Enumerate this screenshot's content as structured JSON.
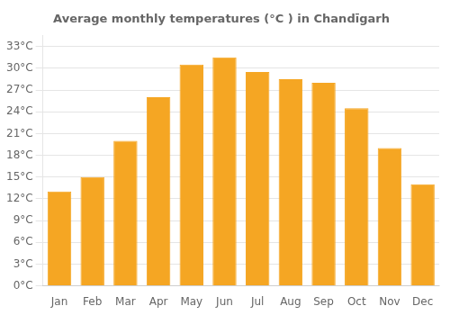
{
  "chart_data": {
    "type": "bar",
    "title": "Average monthly temperatures (°C ) in Chandīgarh",
    "categories": [
      "Jan",
      "Feb",
      "Mar",
      "Apr",
      "May",
      "Jun",
      "Jul",
      "Aug",
      "Sep",
      "Oct",
      "Nov",
      "Dec"
    ],
    "values": [
      13,
      15,
      20,
      26,
      30.5,
      31.5,
      29.5,
      28.5,
      28,
      24.5,
      19,
      14
    ],
    "color": "#F5A623",
    "ylim": [
      0,
      34.5
    ],
    "yticks": [
      {
        "value": 0,
        "label": "0°C"
      },
      {
        "value": 3,
        "label": "3°C"
      },
      {
        "value": 6,
        "label": "6°C"
      },
      {
        "value": 9,
        "label": "9°C"
      },
      {
        "value": 12,
        "label": "12°C"
      },
      {
        "value": 15,
        "label": "15°C"
      },
      {
        "value": 18,
        "label": "18°C"
      },
      {
        "value": 21,
        "label": "21°C"
      },
      {
        "value": 24,
        "label": "24°C"
      },
      {
        "value": 27,
        "label": "27°C"
      },
      {
        "value": 30,
        "label": "30°C"
      },
      {
        "value": 33,
        "label": "33°C"
      }
    ],
    "grid": true
  }
}
